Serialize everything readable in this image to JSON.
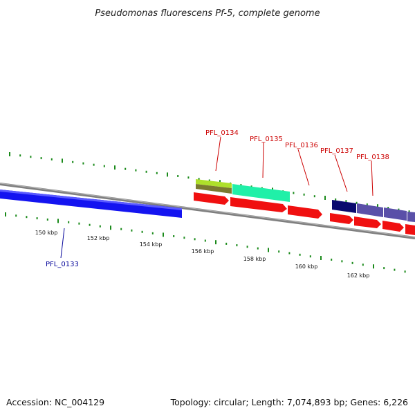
{
  "title": "Pseudomonas fluorescens Pf-5, complete genome",
  "footer": {
    "accession": "Accession: NC_004129",
    "summary": "Topology: circular; Length: 7,074,893 bp; Genes: 6,226"
  },
  "colors": {
    "tick": "#1a8a1a",
    "backbone": "#7f7f7f",
    "forward_label": "#cc0000",
    "reverse_label": "#000099",
    "gene_blue": "#1414f0",
    "gene_red": "#f01010",
    "gene_lime": "#aee02a",
    "gene_olive": "#7a7a30",
    "gene_teal": "#20f0a8",
    "gene_navy": "#0a0a6e",
    "gene_slate": "#5a50a8"
  },
  "scale": {
    "unit": "kbp",
    "labels": [
      "150 kbp",
      "152 kbp",
      "154 kbp",
      "156 kbp",
      "158 kbp",
      "160 kbp",
      "162 kbp"
    ]
  },
  "gene_labels": [
    {
      "name": "PFL_0133",
      "strand": "reverse"
    },
    {
      "name": "PFL_0134",
      "strand": "forward"
    },
    {
      "name": "PFL_0135",
      "strand": "forward"
    },
    {
      "name": "PFL_0136",
      "strand": "forward"
    },
    {
      "name": "PFL_0137",
      "strand": "forward"
    },
    {
      "name": "PFL_0138",
      "strand": "forward"
    }
  ]
}
